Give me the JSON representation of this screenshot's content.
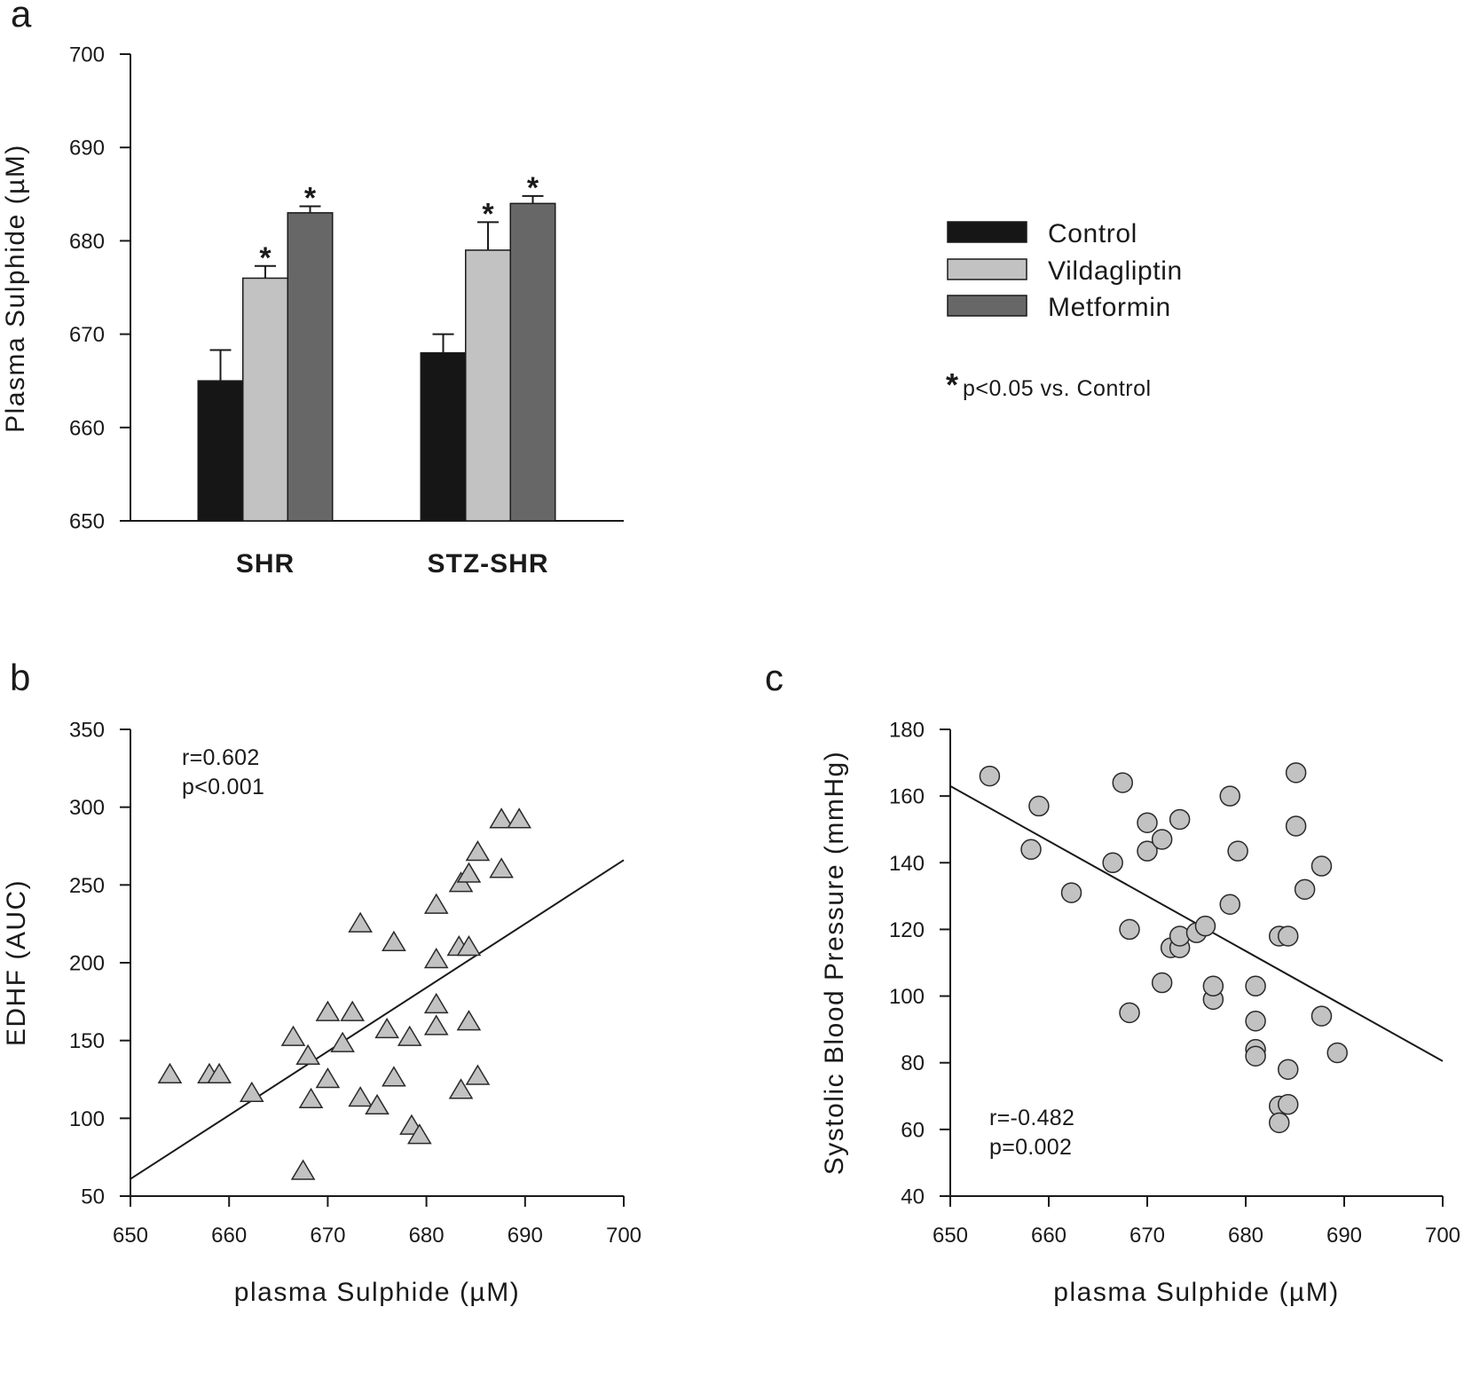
{
  "chart_data": [
    {
      "panel": "a",
      "type": "bar",
      "categories": [
        "SHR",
        "STZ-SHR"
      ],
      "series": [
        {
          "name": "Control",
          "color": "#161616",
          "values": [
            665,
            668
          ],
          "errors": [
            3.3,
            2.0
          ],
          "significant": [
            false,
            false
          ]
        },
        {
          "name": "Vildagliptin",
          "color": "#c2c2c2",
          "values": [
            676,
            679
          ],
          "errors": [
            1.3,
            3.0
          ],
          "significant": [
            true,
            true
          ]
        },
        {
          "name": "Metformin",
          "color": "#676767",
          "values": [
            683,
            684
          ],
          "errors": [
            0.7,
            0.8
          ],
          "significant": [
            true,
            true
          ]
        }
      ],
      "ylabel": "Plasma Sulphide (µM)",
      "ylim": [
        650,
        700
      ],
      "yticks": [
        650,
        660,
        670,
        680,
        690,
        700
      ],
      "grid": false,
      "significance_marker": "*",
      "footnote_marker": "*",
      "footnote_text": "p<0.05 vs. Control",
      "legend_position": "right"
    },
    {
      "panel": "b",
      "type": "scatter",
      "marker_color": "#c2c2c2",
      "xlabel": "plasma Sulphide (µM)",
      "ylabel": "EDHF (AUC)",
      "xlim": [
        650,
        700
      ],
      "ylim": [
        50,
        350
      ],
      "xticks": [
        650,
        660,
        670,
        680,
        690,
        700
      ],
      "yticks": [
        50,
        100,
        150,
        200,
        250,
        300,
        350
      ],
      "grid": false,
      "annotation": [
        "r=0.602",
        "p<0.001"
      ],
      "fit_line": {
        "x": [
          650,
          700
        ],
        "y": [
          61,
          266
        ]
      },
      "points": [
        [
          654,
          128
        ],
        [
          658,
          128
        ],
        [
          659,
          128
        ],
        [
          662.3,
          116
        ],
        [
          666.5,
          152
        ],
        [
          667.5,
          66
        ],
        [
          668,
          140
        ],
        [
          668.3,
          112
        ],
        [
          670,
          168
        ],
        [
          670,
          125
        ],
        [
          671.5,
          148
        ],
        [
          672.5,
          168
        ],
        [
          673.3,
          113
        ],
        [
          673.3,
          225
        ],
        [
          675,
          108
        ],
        [
          676,
          157
        ],
        [
          676.7,
          213
        ],
        [
          676.7,
          126
        ],
        [
          678.3,
          152
        ],
        [
          678.5,
          95
        ],
        [
          679.3,
          89
        ],
        [
          681,
          237
        ],
        [
          681,
          202
        ],
        [
          681,
          173
        ],
        [
          681,
          159
        ],
        [
          683.5,
          118
        ],
        [
          683.5,
          251
        ],
        [
          683.3,
          210
        ],
        [
          684.3,
          210
        ],
        [
          684.3,
          257
        ],
        [
          684.3,
          162
        ],
        [
          685.2,
          127
        ],
        [
          685.2,
          271
        ],
        [
          687.6,
          260
        ],
        [
          687.6,
          292
        ],
        [
          689.4,
          292
        ]
      ]
    },
    {
      "panel": "c",
      "type": "scatter",
      "marker_color": "#c2c2c2",
      "xlabel": "plasma Sulphide (µM)",
      "ylabel": "Systolic Blood Pressure (mmHg)",
      "xlim": [
        650,
        700
      ],
      "ylim": [
        40,
        180
      ],
      "xticks": [
        650,
        660,
        670,
        680,
        690,
        700
      ],
      "yticks": [
        40,
        60,
        80,
        100,
        120,
        140,
        160,
        180
      ],
      "grid": false,
      "annotation": [
        "r=-0.482",
        "p=0.002"
      ],
      "fit_line": {
        "x": [
          650,
          700
        ],
        "y": [
          163,
          80.5
        ]
      },
      "points": [
        [
          654,
          166
        ],
        [
          658.2,
          144
        ],
        [
          659,
          157
        ],
        [
          662.3,
          131
        ],
        [
          666.5,
          140
        ],
        [
          667.5,
          164
        ],
        [
          668.2,
          120
        ],
        [
          668.2,
          95
        ],
        [
          670,
          152
        ],
        [
          670,
          143.5
        ],
        [
          671.5,
          104
        ],
        [
          671.5,
          147
        ],
        [
          672.4,
          114.5
        ],
        [
          673.3,
          153
        ],
        [
          673.3,
          114.5
        ],
        [
          673.3,
          118
        ],
        [
          675,
          119
        ],
        [
          675.9,
          121
        ],
        [
          676.7,
          99
        ],
        [
          676.7,
          103
        ],
        [
          678.4,
          160
        ],
        [
          678.4,
          127.5
        ],
        [
          679.2,
          143.5
        ],
        [
          681,
          103
        ],
        [
          681,
          92.5
        ],
        [
          681,
          84
        ],
        [
          681,
          82
        ],
        [
          683.4,
          118
        ],
        [
          683.4,
          67
        ],
        [
          683.4,
          62
        ],
        [
          684.3,
          118
        ],
        [
          684.3,
          67.5
        ],
        [
          684.3,
          78
        ],
        [
          685.1,
          167
        ],
        [
          685.1,
          151
        ],
        [
          686,
          132
        ],
        [
          687.7,
          139
        ],
        [
          687.7,
          94
        ],
        [
          689.3,
          83
        ]
      ]
    }
  ]
}
